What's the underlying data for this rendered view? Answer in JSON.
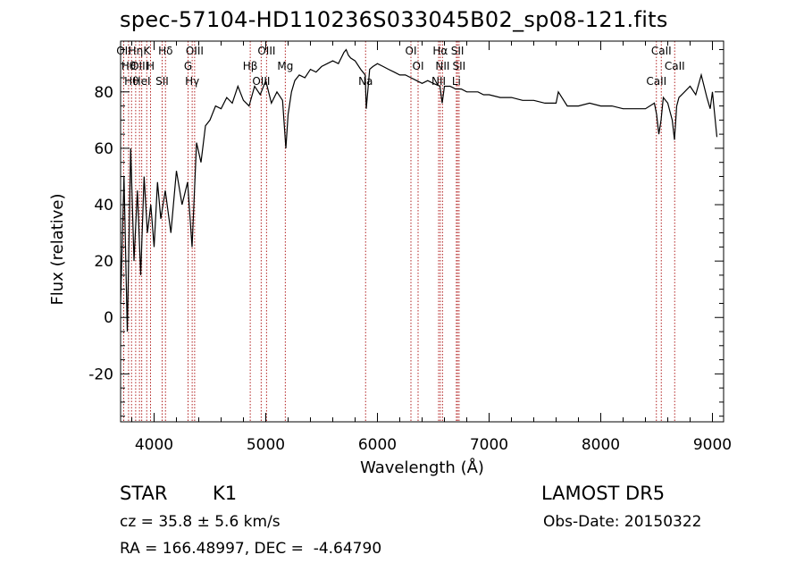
{
  "title": "spec-57104-HD110236S033045B02_sp08-121.fits",
  "info": {
    "object_type": "STAR",
    "subclass": "K1",
    "survey": "LAMOST DR5",
    "cz": "cz = 35.8 ± 5.6 km/s",
    "obs_date": "Obs-Date: 20150322",
    "radec": "RA = 166.48997, DEC =  -4.64790"
  },
  "chart_data": {
    "type": "line",
    "title": "spec-57104-HD110236S033045B02_sp08-121.fits",
    "xlabel": "Wavelength (Å)",
    "ylabel": "Flux (relative)",
    "xlim": [
      3700,
      9100
    ],
    "ylim": [
      -37,
      98
    ],
    "xticks": [
      4000,
      5000,
      6000,
      7000,
      8000,
      9000
    ],
    "yticks": [
      -20,
      0,
      20,
      40,
      60,
      80
    ],
    "grid": false,
    "line_color": "#000000",
    "marker_color": "#b22222",
    "series": [
      {
        "x": [
          3700,
          3730,
          3760,
          3790,
          3820,
          3850,
          3880,
          3910,
          3940,
          3970,
          4000,
          4030,
          4060,
          4100,
          4150,
          4200,
          4250,
          4300,
          4340,
          4380,
          4420,
          4460,
          4500,
          4550,
          4600,
          4650,
          4700,
          4750,
          4800,
          4850,
          4900,
          4950,
          5000,
          5050,
          5100,
          5150,
          5180,
          5200,
          5230,
          5260,
          5300,
          5350,
          5400,
          5450,
          5500,
          5550,
          5600,
          5650,
          5700,
          5720,
          5740,
          5760,
          5800,
          5850,
          5890,
          5900,
          5930,
          5960,
          6000,
          6050,
          6100,
          6150,
          6200,
          6250,
          6300,
          6350,
          6400,
          6450,
          6500,
          6560,
          6580,
          6600,
          6650,
          6700,
          6750,
          6800,
          6850,
          6900,
          6950,
          7000,
          7100,
          7200,
          7300,
          7400,
          7500,
          7600,
          7620,
          7700,
          7800,
          7900,
          8000,
          8100,
          8200,
          8300,
          8400,
          8480,
          8500,
          8520,
          8540,
          8560,
          8600,
          8640,
          8660,
          8680,
          8700,
          8750,
          8800,
          8850,
          8900,
          8950,
          8980,
          9000,
          9020,
          9040
        ],
        "y": [
          5,
          50,
          -5,
          60,
          20,
          45,
          15,
          50,
          30,
          40,
          25,
          48,
          35,
          45,
          30,
          52,
          40,
          48,
          25,
          62,
          55,
          68,
          70,
          75,
          74,
          78,
          76,
          82,
          77,
          75,
          82,
          79,
          84,
          76,
          80,
          77,
          60,
          72,
          80,
          84,
          86,
          85,
          88,
          87,
          89,
          90,
          91,
          90,
          94,
          95,
          93,
          92,
          91,
          88,
          86,
          74,
          88,
          89,
          90,
          89,
          88,
          87,
          86,
          86,
          85,
          84,
          83,
          84,
          83,
          82,
          76,
          82,
          82,
          81,
          81,
          80,
          80,
          80,
          79,
          79,
          78,
          78,
          77,
          77,
          76,
          76,
          80,
          75,
          75,
          76,
          75,
          75,
          74,
          74,
          74,
          76,
          72,
          65,
          70,
          78,
          76,
          70,
          63,
          75,
          78,
          80,
          82,
          79,
          86,
          78,
          74,
          80,
          72,
          64
        ]
      }
    ],
    "lines": [
      {
        "wl": 3728,
        "label": "OII"
      },
      {
        "wl": 3771,
        "label": "Hθ"
      },
      {
        "wl": 3798,
        "label": "Hθ"
      },
      {
        "wl": 3835,
        "label": "Hη"
      },
      {
        "wl": 3869,
        "label": "OIII"
      },
      {
        "wl": 3889,
        "label": "HeI"
      },
      {
        "wl": 3934,
        "label": "K"
      },
      {
        "wl": 3968,
        "label": "H"
      },
      {
        "wl": 4072,
        "label": "SII"
      },
      {
        "wl": 4102,
        "label": "Hδ"
      },
      {
        "wl": 4304,
        "label": "G"
      },
      {
        "wl": 4341,
        "label": "Hγ"
      },
      {
        "wl": 4363,
        "label": "OIII"
      },
      {
        "wl": 4861,
        "label": "Hβ"
      },
      {
        "wl": 4959,
        "label": "OIII"
      },
      {
        "wl": 5007,
        "label": "OIII"
      },
      {
        "wl": 5175,
        "label": "Mg"
      },
      {
        "wl": 5894,
        "label": "Na"
      },
      {
        "wl": 6300,
        "label": "OI"
      },
      {
        "wl": 6364,
        "label": "OI"
      },
      {
        "wl": 6548,
        "label": "NII"
      },
      {
        "wl": 6563,
        "label": "Hα"
      },
      {
        "wl": 6583,
        "label": "NII"
      },
      {
        "wl": 6707,
        "label": "Li"
      },
      {
        "wl": 6717,
        "label": "SII"
      },
      {
        "wl": 6731,
        "label": "SII"
      },
      {
        "wl": 8498,
        "label": "CaII"
      },
      {
        "wl": 8542,
        "label": "CaII"
      },
      {
        "wl": 8662,
        "label": "CaII"
      }
    ]
  }
}
